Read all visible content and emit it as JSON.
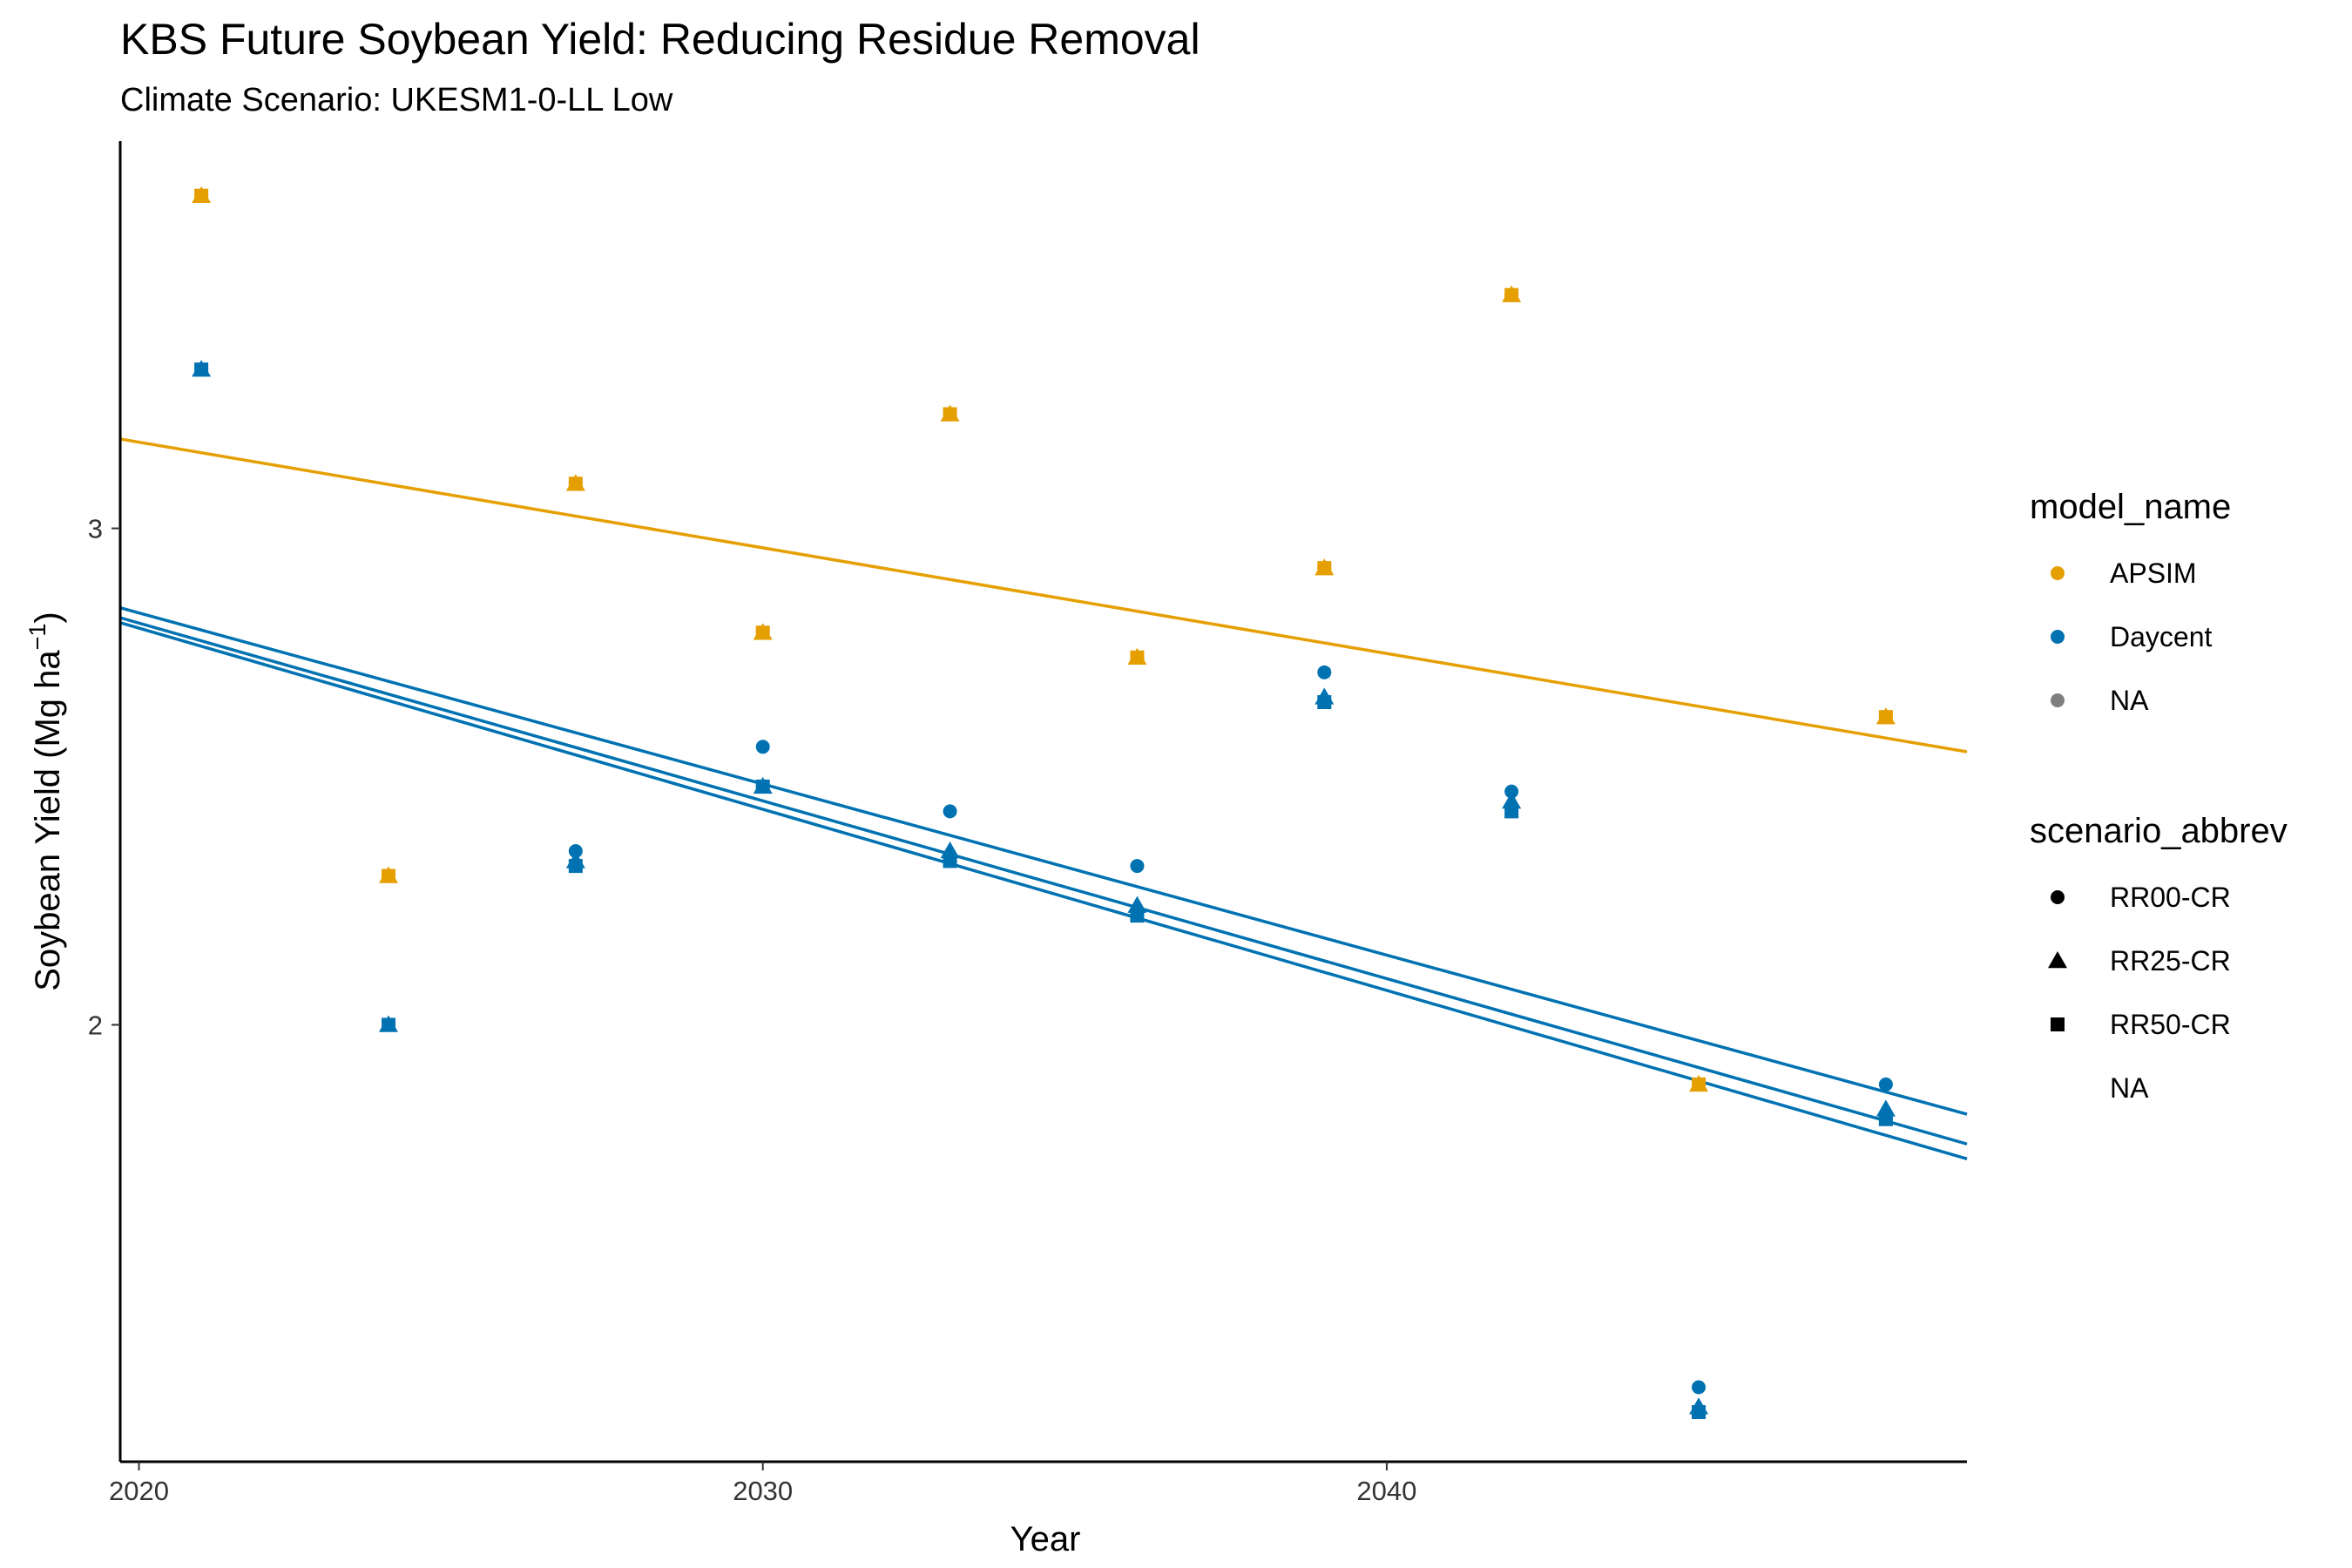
{
  "chart_data": {
    "type": "scatter",
    "title": "KBS Future Soybean Yield: Reducing Residue Removal",
    "subtitle": "Climate Scenario: UKESM1-0-LL Low",
    "xlabel": "Year",
    "ylabel_text": "Soybean Yield (Mg ha",
    "ylabel_superscript": "−1",
    "ylabel_close": ")",
    "xlim": [
      2019.7,
      2049.3
    ],
    "ylim": [
      1.12,
      3.78
    ],
    "x_ticks": [
      {
        "value": 2020,
        "label": "2020"
      },
      {
        "value": 2030,
        "label": "2030"
      },
      {
        "value": 2040,
        "label": "2040"
      }
    ],
    "y_ticks": [
      {
        "value": 2,
        "label": "2"
      },
      {
        "value": 3,
        "label": "3"
      }
    ],
    "grid": false,
    "legend_placement": "right",
    "colors": {
      "APSIM": "#E69F00",
      "Daycent": "#0072B2",
      "NA": "#7f7f7f"
    },
    "legends": [
      {
        "title": "model_name",
        "entries": [
          {
            "label": "APSIM",
            "shape": "circle",
            "color": "#E69F00"
          },
          {
            "label": "Daycent",
            "shape": "circle",
            "color": "#0072B2"
          },
          {
            "label": "NA",
            "shape": "circle",
            "color": "#7f7f7f"
          }
        ]
      },
      {
        "title": "scenario_abbrev",
        "entries": [
          {
            "label": "RR00-CR",
            "shape": "circle",
            "color": "#000000"
          },
          {
            "label": "RR25-CR",
            "shape": "triangle",
            "color": "#000000"
          },
          {
            "label": "RR50-CR",
            "shape": "square",
            "color": "#000000"
          },
          {
            "label": "NA",
            "shape": "none",
            "color": "#000000"
          }
        ]
      }
    ],
    "series": [
      {
        "model": "APSIM",
        "scenario": "RR00-CR",
        "shape": "circle",
        "color": "#E69F00",
        "x": [
          2021,
          2024,
          2027,
          2030,
          2033,
          2036,
          2039,
          2042,
          2045,
          2048
        ],
        "y": [
          3.67,
          2.3,
          3.09,
          2.79,
          3.23,
          2.74,
          2.92,
          3.47,
          1.88,
          2.62
        ]
      },
      {
        "model": "APSIM",
        "scenario": "RR25-CR",
        "shape": "triangle",
        "color": "#E69F00",
        "x": [
          2021,
          2024,
          2027,
          2030,
          2033,
          2036,
          2039,
          2042,
          2045,
          2048
        ],
        "y": [
          3.67,
          2.3,
          3.09,
          2.79,
          3.23,
          2.74,
          2.92,
          3.47,
          1.88,
          2.62
        ]
      },
      {
        "model": "APSIM",
        "scenario": "RR50-CR",
        "shape": "square",
        "color": "#E69F00",
        "x": [
          2021,
          2024,
          2027,
          2030,
          2033,
          2036,
          2039,
          2042,
          2045,
          2048
        ],
        "y": [
          3.67,
          2.3,
          3.09,
          2.79,
          3.23,
          2.74,
          2.92,
          3.47,
          1.88,
          2.62
        ]
      },
      {
        "model": "Daycent",
        "scenario": "RR00-CR",
        "shape": "circle",
        "color": "#0072B2",
        "x": [
          2021,
          2024,
          2027,
          2030,
          2033,
          2036,
          2039,
          2042,
          2045,
          2048
        ],
        "y": [
          3.32,
          2.0,
          2.35,
          2.56,
          2.43,
          2.32,
          2.71,
          2.47,
          1.27,
          1.88
        ]
      },
      {
        "model": "Daycent",
        "scenario": "RR25-CR",
        "shape": "triangle",
        "color": "#0072B2",
        "x": [
          2021,
          2024,
          2027,
          2030,
          2033,
          2036,
          2039,
          2042,
          2045,
          2048
        ],
        "y": [
          3.32,
          2.0,
          2.33,
          2.48,
          2.35,
          2.24,
          2.66,
          2.45,
          1.23,
          1.83
        ]
      },
      {
        "model": "Daycent",
        "scenario": "RR50-CR",
        "shape": "square",
        "color": "#0072B2",
        "x": [
          2021,
          2024,
          2027,
          2030,
          2033,
          2036,
          2039,
          2042,
          2045,
          2048
        ],
        "y": [
          3.32,
          2.0,
          2.32,
          2.48,
          2.33,
          2.22,
          2.65,
          2.43,
          1.22,
          1.81
        ]
      }
    ],
    "trend_lines": [
      {
        "model": "APSIM",
        "color": "#E69F00",
        "x": [
          2019.7,
          2049.3
        ],
        "y": [
          3.18,
          2.55
        ]
      },
      {
        "model": "Daycent",
        "scenario": "RR00-CR",
        "color": "#0072B2",
        "x": [
          2019.7,
          2049.3
        ],
        "y": [
          2.84,
          1.82
        ]
      },
      {
        "model": "Daycent",
        "scenario": "RR25-CR",
        "color": "#0072B2",
        "x": [
          2019.7,
          2049.3
        ],
        "y": [
          2.82,
          1.76
        ]
      },
      {
        "model": "Daycent",
        "scenario": "RR50-CR",
        "color": "#0072B2",
        "x": [
          2019.7,
          2049.3
        ],
        "y": [
          2.81,
          1.73
        ]
      }
    ]
  }
}
